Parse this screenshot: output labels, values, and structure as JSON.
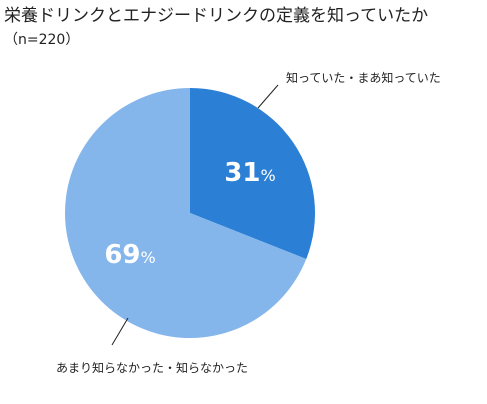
{
  "chart_data": {
    "type": "pie",
    "title": "栄養ドリンクとエナジードリンクの定義を知っていたか",
    "subtitle": "（n=220）",
    "unit": "%",
    "slices": [
      {
        "label": "知っていた・まあ知っていた",
        "value": 31,
        "color": "#2b7fd4"
      },
      {
        "label": "あまり知らなかった・知らなかった",
        "value": 69,
        "color": "#85b6eb"
      }
    ],
    "start_angle": "12 o'clock",
    "direction": "clockwise"
  }
}
